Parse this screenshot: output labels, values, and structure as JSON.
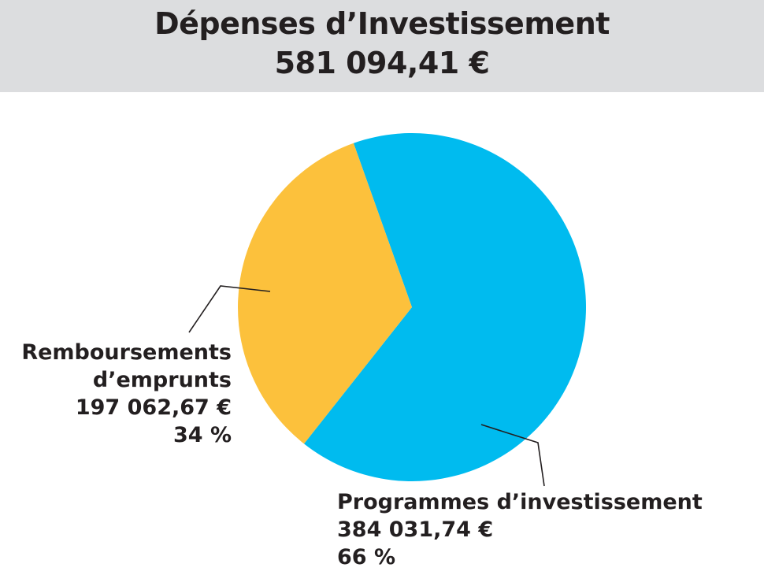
{
  "header": {
    "title": "Dépenses d’Investissement",
    "total": "581 094,41 €"
  },
  "colors": {
    "header_bg": "#dcdddf",
    "slice_blue": "#00bbef",
    "slice_yellow": "#fcc13c",
    "text": "#231f20"
  },
  "chart_data": {
    "type": "pie",
    "title": "Dépenses d’Investissement",
    "total": "581 094,41 €",
    "series": [
      {
        "name": "Programmes d’investissement",
        "value": 384031.74,
        "value_label": "384 031,74 €",
        "percent": 66,
        "percent_label": "66 %",
        "color": "#00bbef"
      },
      {
        "name": "Remboursements d’emprunts",
        "value": 197062.67,
        "value_label": "197 062,67 €",
        "percent": 34,
        "percent_label": "34 %",
        "color": "#fcc13c"
      }
    ]
  },
  "labels": {
    "left": {
      "line1": "Remboursements",
      "line2": "d’emprunts",
      "value": "197 062,67 €",
      "percent": "34 %"
    },
    "right": {
      "line1": "Programmes d’investissement",
      "value": "384 031,74 €",
      "percent": "66 %"
    }
  }
}
